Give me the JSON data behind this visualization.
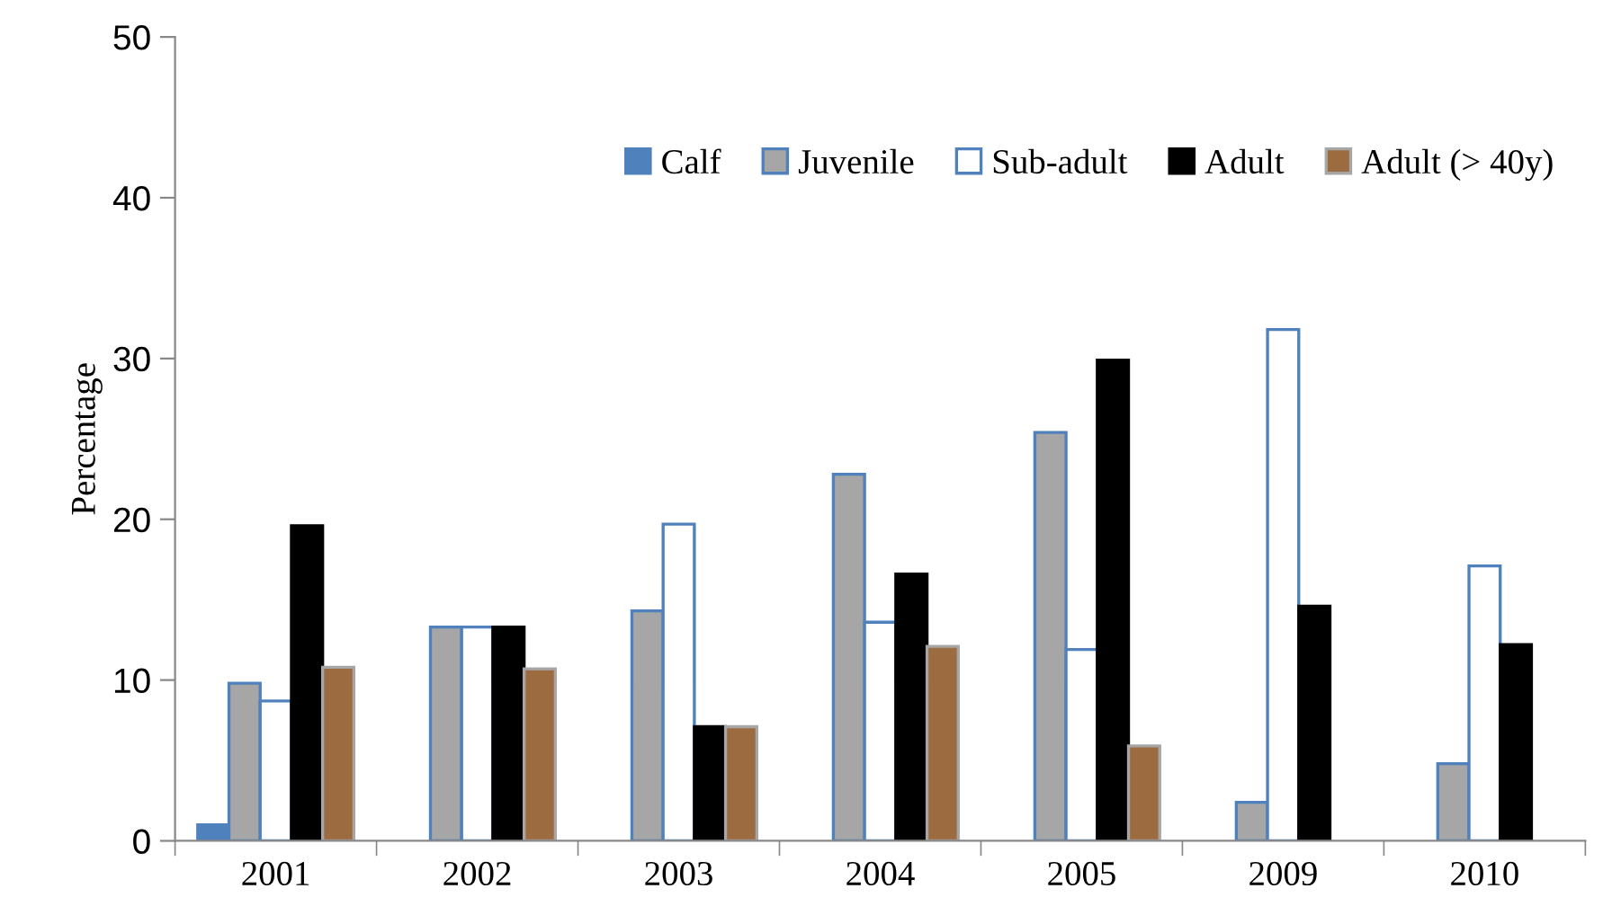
{
  "chart_data": {
    "type": "bar",
    "ylabel": "Percentage",
    "categories": [
      "2001",
      "2002",
      "2003",
      "2004",
      "2005",
      "2009",
      "2010"
    ],
    "series": [
      {
        "name": "Calf",
        "color": "#4f81bd",
        "values": [
          1.0,
          null,
          null,
          null,
          null,
          null,
          null
        ]
      },
      {
        "name": "Juvenile",
        "color": "#a6a6a6",
        "values": [
          9.8,
          13.3,
          14.3,
          22.8,
          25.4,
          2.4,
          4.8
        ]
      },
      {
        "name": "Sub-adult",
        "color": "#ffffff",
        "values": [
          8.7,
          13.3,
          19.7,
          13.6,
          11.9,
          31.8,
          17.1
        ]
      },
      {
        "name": "Adult",
        "color": "#000000",
        "values": [
          19.6,
          13.3,
          7.1,
          16.6,
          29.9,
          14.6,
          12.2
        ]
      },
      {
        "name": "Adult (> 40y)",
        "color": "#9c6b3f",
        "values": [
          10.8,
          10.7,
          7.1,
          12.1,
          5.9,
          null,
          null
        ]
      }
    ],
    "ylim": [
      0,
      50
    ],
    "yticks": [
      0,
      10,
      20,
      30,
      40,
      50
    ],
    "grid": false,
    "legend": "top right"
  }
}
